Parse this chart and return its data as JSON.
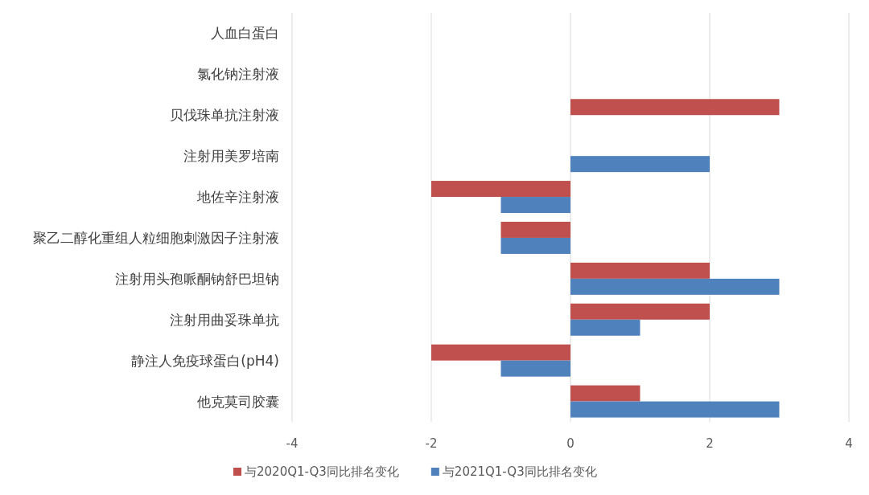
{
  "chart_data": {
    "type": "bar",
    "orientation": "horizontal",
    "categories": [
      "人血白蛋白",
      "氯化钠注射液",
      "贝伐珠单抗注射液",
      "注射用美罗培南",
      "地佐辛注射液",
      "聚乙二醇化重组人粒细胞刺激因子注射液",
      "注射用头孢哌酮钠舒巴坦钠",
      "注射用曲妥珠单抗",
      "静注人免疫球蛋白(pH4)",
      "他克莫司胶囊"
    ],
    "series": [
      {
        "name": "与2020Q1-Q3同比排名变化",
        "color": "#c0504d",
        "values": [
          null,
          null,
          3,
          null,
          -2,
          -1,
          2,
          2,
          -2,
          1
        ]
      },
      {
        "name": "与2021Q1-Q3同比排名变化",
        "color": "#4f81bd",
        "values": [
          null,
          null,
          null,
          2,
          -1,
          -1,
          3,
          1,
          -1,
          3
        ]
      }
    ],
    "xlim": [
      -4,
      4
    ],
    "xticks": [
      -4,
      -2,
      0,
      2,
      4
    ],
    "grid": "x",
    "legend": "bottom"
  }
}
